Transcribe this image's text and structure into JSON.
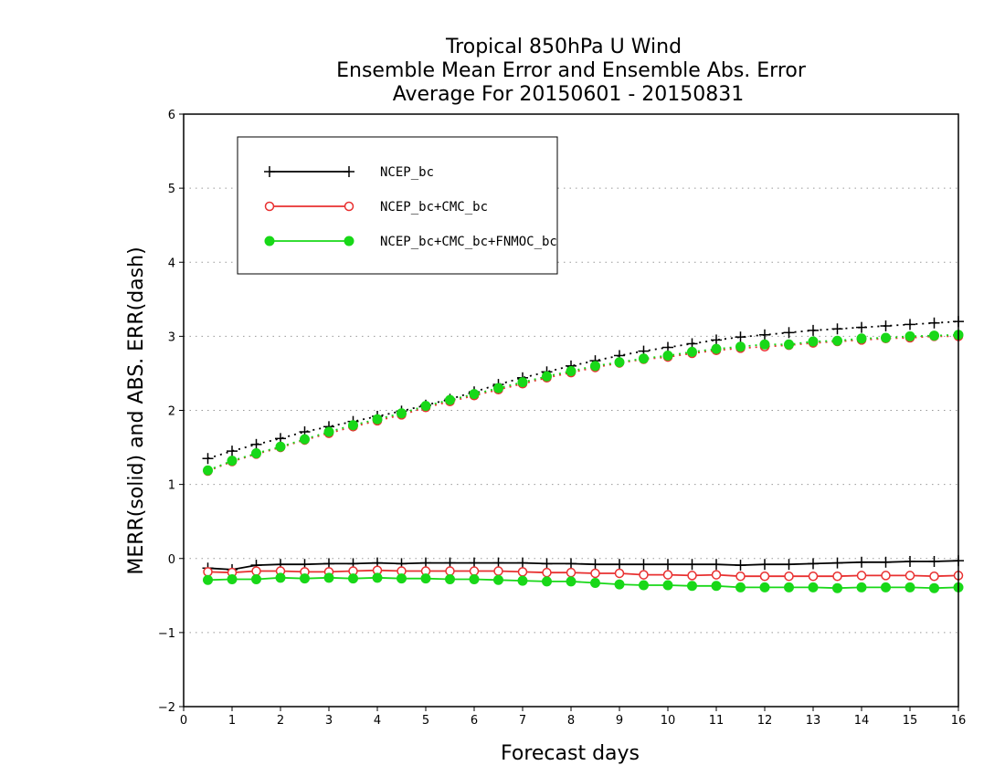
{
  "chart_data": {
    "type": "line",
    "title_lines": [
      "Tropical 850hPa U Wind",
      "Ensemble Mean Error and Ensemble Abs. Error",
      "Average For 20150601 - 20150831"
    ],
    "xlabel": "Forecast days",
    "ylabel": "MERR(solid) and ABS. ERR(dash)",
    "xlim": [
      0,
      16
    ],
    "ylim": [
      -2,
      6
    ],
    "xticks": [
      "0",
      "1",
      "2",
      "3",
      "4",
      "5",
      "6",
      "7",
      "8",
      "9",
      "10",
      "11",
      "12",
      "13",
      "14",
      "15",
      "16"
    ],
    "yticks": [
      "-2",
      "-1",
      "0",
      "1",
      "2",
      "3",
      "4",
      "5",
      "6"
    ],
    "grid": "horizontal dotted",
    "legend_position": "top-left",
    "x": [
      0.5,
      1,
      1.5,
      2,
      2.5,
      3,
      3.5,
      4,
      4.5,
      5,
      5.5,
      6,
      6.5,
      7,
      7.5,
      8,
      8.5,
      9,
      9.5,
      10,
      10.5,
      11,
      11.5,
      12,
      12.5,
      13,
      13.5,
      14,
      14.5,
      15,
      15.5,
      16
    ],
    "series": [
      {
        "name": "NCEP_bc",
        "color": "#000000",
        "marker": "plus",
        "merr": [
          -0.13,
          -0.15,
          -0.09,
          -0.08,
          -0.08,
          -0.07,
          -0.07,
          -0.06,
          -0.07,
          -0.06,
          -0.06,
          -0.06,
          -0.06,
          -0.06,
          -0.07,
          -0.07,
          -0.08,
          -0.08,
          -0.08,
          -0.08,
          -0.08,
          -0.08,
          -0.09,
          -0.08,
          -0.08,
          -0.07,
          -0.06,
          -0.05,
          -0.05,
          -0.04,
          -0.04,
          -0.03
        ],
        "abs_err": [
          1.35,
          1.45,
          1.54,
          1.62,
          1.71,
          1.78,
          1.85,
          1.92,
          1.99,
          2.07,
          2.15,
          2.25,
          2.35,
          2.44,
          2.52,
          2.6,
          2.67,
          2.74,
          2.8,
          2.85,
          2.9,
          2.95,
          2.99,
          3.02,
          3.05,
          3.08,
          3.1,
          3.12,
          3.14,
          3.16,
          3.18,
          3.2
        ]
      },
      {
        "name": "NCEP_bc+CMC_bc",
        "color": "#e83030",
        "marker": "open-circle",
        "merr": [
          -0.18,
          -0.19,
          -0.17,
          -0.17,
          -0.18,
          -0.18,
          -0.17,
          -0.16,
          -0.17,
          -0.17,
          -0.17,
          -0.17,
          -0.17,
          -0.18,
          -0.19,
          -0.19,
          -0.2,
          -0.2,
          -0.22,
          -0.22,
          -0.23,
          -0.22,
          -0.24,
          -0.24,
          -0.24,
          -0.24,
          -0.24,
          -0.23,
          -0.23,
          -0.23,
          -0.24,
          -0.23
        ],
        "abs_err": [
          1.18,
          1.31,
          1.41,
          1.5,
          1.6,
          1.69,
          1.78,
          1.86,
          1.94,
          2.04,
          2.12,
          2.2,
          2.28,
          2.36,
          2.44,
          2.51,
          2.58,
          2.64,
          2.69,
          2.72,
          2.77,
          2.81,
          2.84,
          2.86,
          2.88,
          2.91,
          2.93,
          2.95,
          2.97,
          2.98,
          3.0,
          3.0
        ]
      },
      {
        "name": "NCEP_bc+CMC_bc+FNMOC_bc",
        "color": "#18d818",
        "marker": "filled-circle",
        "merr": [
          -0.29,
          -0.28,
          -0.28,
          -0.26,
          -0.27,
          -0.26,
          -0.27,
          -0.26,
          -0.27,
          -0.27,
          -0.28,
          -0.28,
          -0.29,
          -0.3,
          -0.31,
          -0.31,
          -0.33,
          -0.35,
          -0.36,
          -0.36,
          -0.37,
          -0.37,
          -0.39,
          -0.39,
          -0.39,
          -0.39,
          -0.4,
          -0.39,
          -0.39,
          -0.39,
          -0.4,
          -0.39
        ],
        "abs_err": [
          1.19,
          1.32,
          1.42,
          1.51,
          1.61,
          1.71,
          1.8,
          1.88,
          1.96,
          2.06,
          2.14,
          2.22,
          2.3,
          2.38,
          2.46,
          2.53,
          2.6,
          2.65,
          2.7,
          2.74,
          2.79,
          2.83,
          2.86,
          2.89,
          2.89,
          2.93,
          2.94,
          2.97,
          2.98,
          3.0,
          3.01,
          3.02
        ]
      }
    ]
  }
}
